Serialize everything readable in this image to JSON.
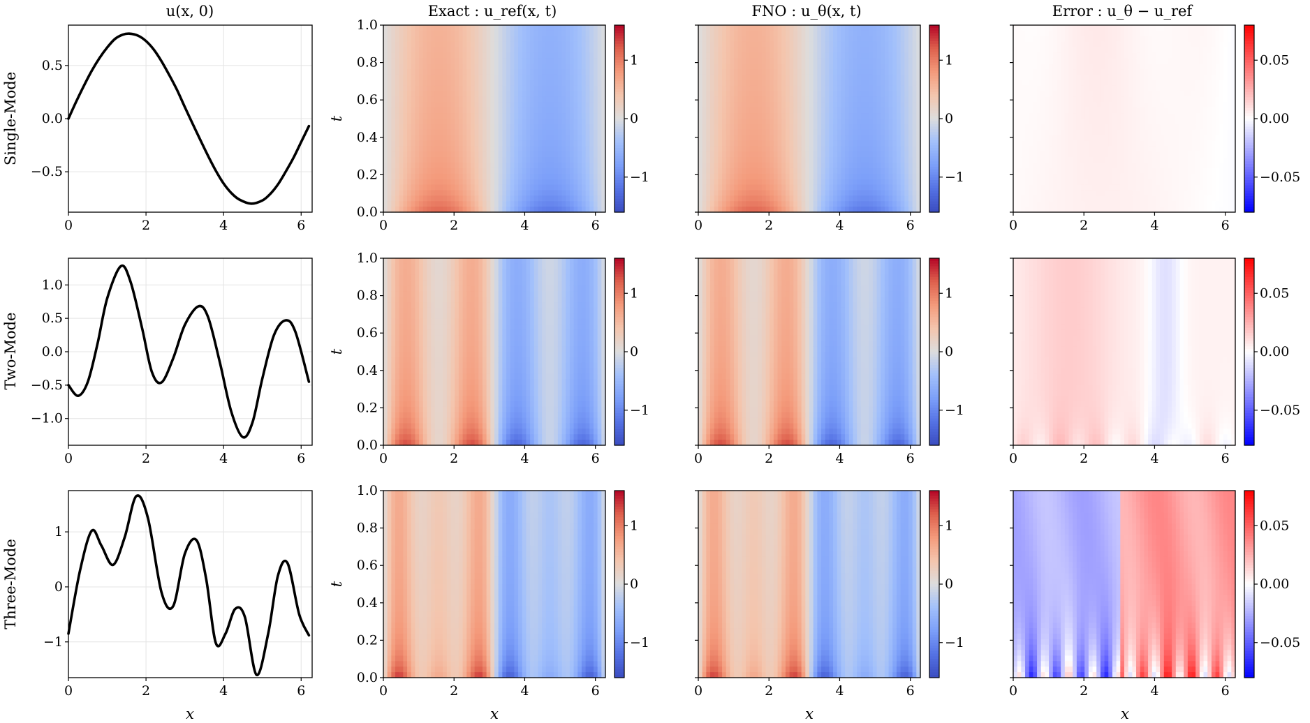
{
  "chart_data": {
    "type": "heatmap",
    "layout": "3 rows x 4 columns figure grid",
    "column_titles": [
      "u(x, 0)",
      "Exact : u_ref(x, t)",
      "FNO : u_θ(x, t)",
      "Error : u_θ − u_ref"
    ],
    "row_labels": [
      "Single-Mode",
      "Two-Mode",
      "Three-Mode"
    ],
    "xlabel": "x",
    "ylabel": "t",
    "x_range": [
      0,
      6.2832
    ],
    "t_range": [
      0,
      1
    ],
    "x_ticks": [
      "0",
      "2",
      "4",
      "6"
    ],
    "t_ticks": [
      "0.0",
      "0.2",
      "0.4",
      "0.6",
      "0.8",
      "1.0"
    ],
    "field_colorbar": {
      "colormap": "coolwarm",
      "range": [
        -1.6,
        1.6
      ],
      "ticks": [
        "−1",
        "0",
        "1"
      ],
      "tick_values": [
        -1,
        0,
        1
      ]
    },
    "error_colorbar": {
      "colormap": "bwr",
      "range": [
        -0.08,
        0.08
      ],
      "ticks": [
        "−0.05",
        "0.00",
        "0.05"
      ],
      "tick_values": [
        -0.05,
        0,
        0.05
      ]
    },
    "rows": [
      {
        "name": "Single-Mode",
        "initial_condition": {
          "ylim": [
            -0.88,
            0.88
          ],
          "y_ticks": [
            "−0.5",
            "0.0",
            "0.5"
          ],
          "y_tick_values": [
            -0.5,
            0,
            0.5
          ],
          "x": [
            0,
            0.2,
            0.4,
            0.6,
            0.8,
            1.0,
            1.2,
            1.4,
            1.57,
            1.8,
            2.0,
            2.2,
            2.4,
            2.6,
            2.8,
            3.0,
            3.14,
            3.4,
            3.6,
            3.8,
            4.0,
            4.2,
            4.4,
            4.71,
            5.0,
            5.2,
            5.4,
            5.6,
            5.8,
            6.0,
            6.2
          ],
          "y": [
            0,
            0.16,
            0.31,
            0.45,
            0.57,
            0.67,
            0.75,
            0.79,
            0.8,
            0.78,
            0.73,
            0.65,
            0.54,
            0.41,
            0.27,
            0.11,
            0,
            -0.2,
            -0.35,
            -0.49,
            -0.61,
            -0.7,
            -0.76,
            -0.8,
            -0.77,
            -0.71,
            -0.62,
            -0.5,
            -0.37,
            -0.22,
            -0.07
          ]
        },
        "field": {
          "modes": [
            [
              0.8,
              1
            ]
          ]
        },
        "error_pattern": "near-zero, faint positive (~0.005) over most of the domain"
      },
      {
        "name": "Two-Mode",
        "initial_condition": {
          "ylim": [
            -1.4,
            1.4
          ],
          "y_ticks": [
            "−1.0",
            "−0.5",
            "0.0",
            "0.5",
            "1.0"
          ],
          "y_tick_values": [
            -1,
            -0.5,
            0,
            0.5,
            1
          ],
          "x": [
            0,
            0.25,
            0.5,
            0.75,
            1.0,
            1.35,
            1.6,
            1.9,
            2.15,
            2.4,
            2.7,
            3.0,
            3.35,
            3.6,
            3.9,
            4.2,
            4.5,
            4.75,
            5.0,
            5.3,
            5.6,
            5.85,
            6.2
          ],
          "y": [
            -0.5,
            -0.66,
            -0.45,
            0.12,
            0.8,
            1.28,
            1.05,
            0.35,
            -0.3,
            -0.46,
            -0.1,
            0.4,
            0.68,
            0.52,
            -0.15,
            -0.9,
            -1.28,
            -1.05,
            -0.4,
            0.25,
            0.47,
            0.3,
            -0.45
          ]
        },
        "field": {
          "modes": [
            [
              0.65,
              1
            ],
            [
              0.6,
              3
            ]
          ]
        },
        "error_pattern": "weak positive (~0.01) on 0<x<3.3, weak negative band near x=4.2"
      },
      {
        "name": "Three-Mode",
        "initial_condition": {
          "ylim": [
            -1.65,
            1.75
          ],
          "y_ticks": [
            "−1",
            "0",
            "1"
          ],
          "y_tick_values": [
            -1,
            0,
            1
          ],
          "x": [
            0,
            0.3,
            0.6,
            0.85,
            1.15,
            1.45,
            1.75,
            2.05,
            2.4,
            2.7,
            3.0,
            3.3,
            3.55,
            3.8,
            4.05,
            4.3,
            4.55,
            4.85,
            5.15,
            5.4,
            5.65,
            5.95,
            6.2
          ],
          "y": [
            -0.85,
            0.3,
            1.02,
            0.75,
            0.4,
            0.9,
            1.65,
            1.25,
            -0.1,
            -0.35,
            0.6,
            0.85,
            0.15,
            -1.02,
            -0.85,
            -0.4,
            -0.55,
            -1.6,
            -0.85,
            0.2,
            0.43,
            -0.5,
            -0.88
          ]
        },
        "field": {
          "modes": [
            [
              0.6,
              1
            ],
            [
              0.5,
              3
            ],
            [
              0.35,
              5
            ]
          ]
        },
        "error_pattern": "negative (~-0.03) for x<3, positive (~+0.04) for x>3.3, strong alternating bands near t=0"
      }
    ]
  }
}
